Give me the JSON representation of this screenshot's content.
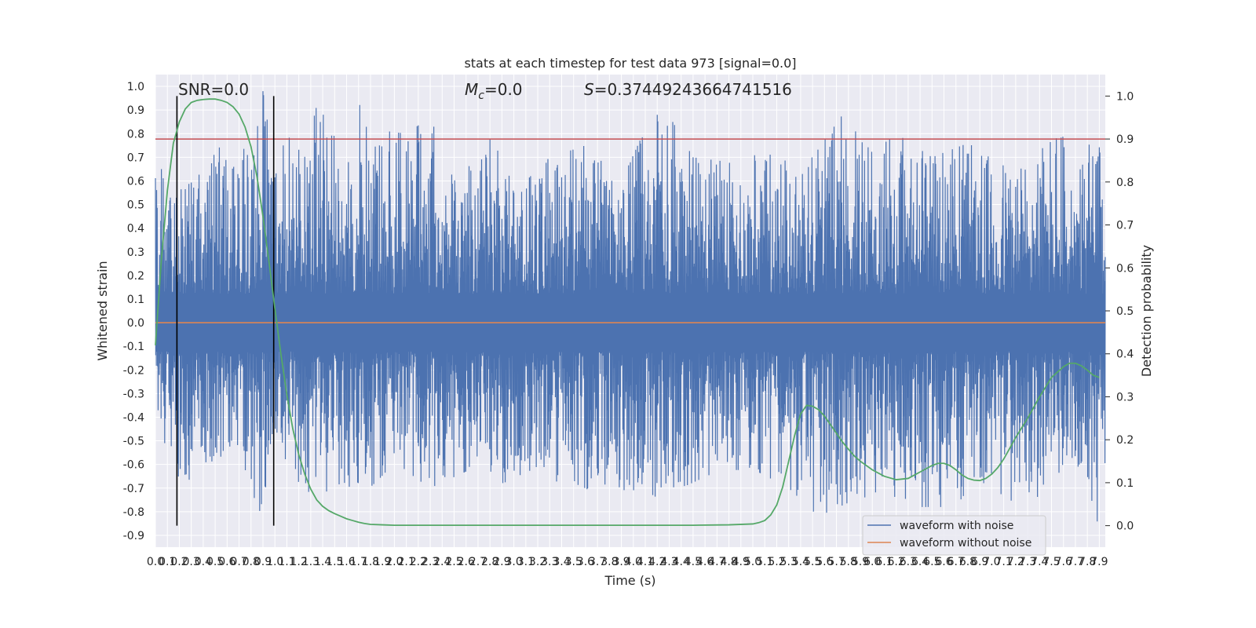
{
  "chart_data": {
    "type": "line",
    "title": "stats at each timestep for test data 973 [signal=0.0]",
    "xlabel": "Time (s)",
    "ylabel": "Whitened strain",
    "y2label": "Detection probability",
    "xlim": [
      0,
      7.95
    ],
    "ylim": [
      -0.95,
      1.05
    ],
    "y2lim": [
      -0.05,
      1.05
    ],
    "x_ticks": [
      "0.0",
      "0.1",
      "0.2",
      "0.3",
      "0.4",
      "0.5",
      "0.6",
      "0.7",
      "0.8",
      "0.9",
      "1.0",
      "1.1",
      "1.2",
      "1.3",
      "1.4",
      "1.5",
      "1.6",
      "1.7",
      "1.8",
      "1.9",
      "2.0",
      "2.1",
      "2.2",
      "2.3",
      "2.4",
      "2.5",
      "2.6",
      "2.7",
      "2.8",
      "2.9",
      "3.0",
      "3.1",
      "3.2",
      "3.3",
      "3.4",
      "3.5",
      "3.6",
      "3.7",
      "3.8",
      "3.9",
      "4.0",
      "4.1",
      "4.2",
      "4.3",
      "4.4",
      "4.5",
      "4.6",
      "4.7",
      "4.8",
      "4.9",
      "5.0",
      "5.1",
      "5.2",
      "5.3",
      "5.4",
      "5.5",
      "5.6",
      "5.7",
      "5.8",
      "5.9",
      "6.0",
      "6.1",
      "6.2",
      "6.3",
      "6.4",
      "6.5",
      "6.6",
      "6.7",
      "6.8",
      "6.9",
      "7.0",
      "7.1",
      "7.2",
      "7.3",
      "7.4",
      "7.5",
      "7.6",
      "7.7",
      "7.8",
      "7.9"
    ],
    "y_ticks": [
      "1.0",
      "0.9",
      "0.8",
      "0.7",
      "0.6",
      "0.5",
      "0.4",
      "0.3",
      "0.2",
      "0.1",
      "0.0",
      "-0.1",
      "-0.2",
      "-0.3",
      "-0.4",
      "-0.5",
      "-0.6",
      "-0.7",
      "-0.8",
      "-0.9"
    ],
    "y2_ticks": [
      "1.0",
      "0.9",
      "0.8",
      "0.7",
      "0.6",
      "0.5",
      "0.4",
      "0.3",
      "0.2",
      "0.1",
      "0.0"
    ],
    "annotations": {
      "snr": "SNR=0.0",
      "mc_symbol": "M",
      "mc_subscript": "c",
      "mc_value": "=0.0",
      "s_symbol": "S",
      "s_value": "=0.37449243664741516"
    },
    "vertical_lines_x": [
      0.18,
      0.99
    ],
    "threshold_y2": 0.9,
    "series": [
      {
        "name": "waveform with noise",
        "color": "#4c72b0",
        "envelope_upper": [
          [
            0.0,
            0.62
          ],
          [
            0.05,
            0.65
          ],
          [
            0.1,
            0.52
          ],
          [
            0.18,
            0.55
          ],
          [
            0.3,
            0.6
          ],
          [
            0.45,
            0.68
          ],
          [
            0.55,
            0.8
          ],
          [
            0.62,
            0.62
          ],
          [
            0.7,
            0.78
          ],
          [
            0.8,
            0.68
          ],
          [
            0.9,
            0.98
          ],
          [
            0.99,
            0.67
          ],
          [
            1.1,
            0.78
          ],
          [
            1.3,
            0.81
          ],
          [
            1.35,
            0.92
          ],
          [
            1.45,
            0.86
          ],
          [
            1.6,
            0.63
          ],
          [
            1.7,
            0.96
          ],
          [
            1.85,
            0.73
          ],
          [
            1.95,
            0.81
          ],
          [
            2.1,
            0.8
          ],
          [
            2.3,
            0.87
          ],
          [
            2.5,
            0.6
          ],
          [
            2.7,
            0.7
          ],
          [
            2.85,
            0.82
          ],
          [
            3.0,
            0.55
          ],
          [
            3.3,
            0.7
          ],
          [
            3.6,
            0.75
          ],
          [
            3.9,
            0.6
          ],
          [
            4.1,
            0.82
          ],
          [
            4.25,
            0.92
          ],
          [
            4.5,
            0.7
          ],
          [
            4.8,
            0.68
          ],
          [
            5.1,
            0.72
          ],
          [
            5.3,
            0.68
          ],
          [
            5.5,
            0.7
          ],
          [
            5.75,
            0.88
          ],
          [
            6.0,
            0.72
          ],
          [
            6.2,
            0.8
          ],
          [
            6.5,
            0.7
          ],
          [
            6.8,
            0.76
          ],
          [
            7.0,
            0.7
          ],
          [
            7.3,
            0.72
          ],
          [
            7.58,
            0.87
          ],
          [
            7.7,
            0.6
          ],
          [
            7.88,
            0.84
          ],
          [
            7.95,
            0.55
          ]
        ],
        "envelope_lower": [
          [
            0.0,
            -0.42
          ],
          [
            0.05,
            -0.56
          ],
          [
            0.1,
            -0.5
          ],
          [
            0.17,
            -0.81
          ],
          [
            0.22,
            -0.71
          ],
          [
            0.35,
            -0.62
          ],
          [
            0.5,
            -0.58
          ],
          [
            0.7,
            -0.62
          ],
          [
            0.9,
            -0.83
          ],
          [
            0.99,
            -0.5
          ],
          [
            1.15,
            -0.65
          ],
          [
            1.35,
            -0.75
          ],
          [
            1.55,
            -0.68
          ],
          [
            1.75,
            -0.72
          ],
          [
            2.0,
            -0.6
          ],
          [
            2.3,
            -0.7
          ],
          [
            2.6,
            -0.63
          ],
          [
            2.9,
            -0.68
          ],
          [
            3.2,
            -0.63
          ],
          [
            3.5,
            -0.72
          ],
          [
            3.8,
            -0.68
          ],
          [
            4.1,
            -0.75
          ],
          [
            4.4,
            -0.7
          ],
          [
            4.7,
            -0.63
          ],
          [
            5.0,
            -0.62
          ],
          [
            5.3,
            -0.7
          ],
          [
            5.55,
            -0.82
          ],
          [
            5.85,
            -0.75
          ],
          [
            6.1,
            -0.72
          ],
          [
            6.4,
            -0.78
          ],
          [
            6.65,
            -0.78
          ],
          [
            6.85,
            -0.71
          ],
          [
            7.0,
            -0.7
          ],
          [
            7.3,
            -0.8
          ],
          [
            7.5,
            -0.66
          ],
          [
            7.7,
            -0.58
          ],
          [
            7.88,
            -0.85
          ],
          [
            7.95,
            -0.6
          ]
        ]
      },
      {
        "name": "waveform without noise",
        "color": "#dd8452",
        "x": [
          0,
          7.95
        ],
        "y": [
          0.0,
          0.0
        ]
      },
      {
        "color": "#55a868",
        "axis": "right",
        "x": [
          0.0,
          0.05,
          0.1,
          0.15,
          0.2,
          0.25,
          0.3,
          0.35,
          0.4,
          0.45,
          0.5,
          0.55,
          0.6,
          0.65,
          0.7,
          0.75,
          0.8,
          0.85,
          0.9,
          0.95,
          1.0,
          1.05,
          1.1,
          1.15,
          1.2,
          1.25,
          1.3,
          1.35,
          1.4,
          1.45,
          1.5,
          1.55,
          1.6,
          1.65,
          1.7,
          1.75,
          1.8,
          1.9,
          2.0,
          2.5,
          3.0,
          3.5,
          4.0,
          4.5,
          4.8,
          5.0,
          5.05,
          5.1,
          5.15,
          5.2,
          5.25,
          5.3,
          5.35,
          5.4,
          5.45,
          5.5,
          5.55,
          5.6,
          5.65,
          5.7,
          5.75,
          5.8,
          5.85,
          5.9,
          6.0,
          6.1,
          6.2,
          6.3,
          6.4,
          6.5,
          6.55,
          6.6,
          6.65,
          6.7,
          6.75,
          6.8,
          6.85,
          6.9,
          6.95,
          7.0,
          7.05,
          7.1,
          7.15,
          7.2,
          7.3,
          7.4,
          7.5,
          7.6,
          7.65,
          7.7,
          7.75,
          7.8,
          7.85,
          7.9
        ],
        "y": [
          0.42,
          0.62,
          0.78,
          0.89,
          0.94,
          0.97,
          0.985,
          0.99,
          0.992,
          0.993,
          0.993,
          0.99,
          0.985,
          0.975,
          0.958,
          0.928,
          0.882,
          0.812,
          0.72,
          0.615,
          0.505,
          0.4,
          0.305,
          0.225,
          0.165,
          0.12,
          0.085,
          0.06,
          0.045,
          0.035,
          0.028,
          0.022,
          0.016,
          0.012,
          0.008,
          0.005,
          0.003,
          0.002,
          0.001,
          0.001,
          0.001,
          0.001,
          0.001,
          0.001,
          0.002,
          0.004,
          0.007,
          0.012,
          0.025,
          0.048,
          0.09,
          0.15,
          0.21,
          0.26,
          0.28,
          0.278,
          0.27,
          0.255,
          0.235,
          0.215,
          0.195,
          0.178,
          0.162,
          0.15,
          0.13,
          0.115,
          0.107,
          0.11,
          0.125,
          0.14,
          0.145,
          0.145,
          0.14,
          0.13,
          0.118,
          0.11,
          0.106,
          0.105,
          0.11,
          0.12,
          0.135,
          0.155,
          0.18,
          0.205,
          0.25,
          0.3,
          0.345,
          0.37,
          0.378,
          0.378,
          0.372,
          0.362,
          0.35,
          0.345
        ]
      }
    ],
    "colors": {
      "plot_bg": "#eaeaf2",
      "grid": "#ffffff",
      "threshold": "#c44e52",
      "vline": "#000000"
    },
    "legend": {
      "placement": "lower-right",
      "entries": [
        "waveform with noise",
        "waveform without noise"
      ]
    },
    "grid": true
  }
}
